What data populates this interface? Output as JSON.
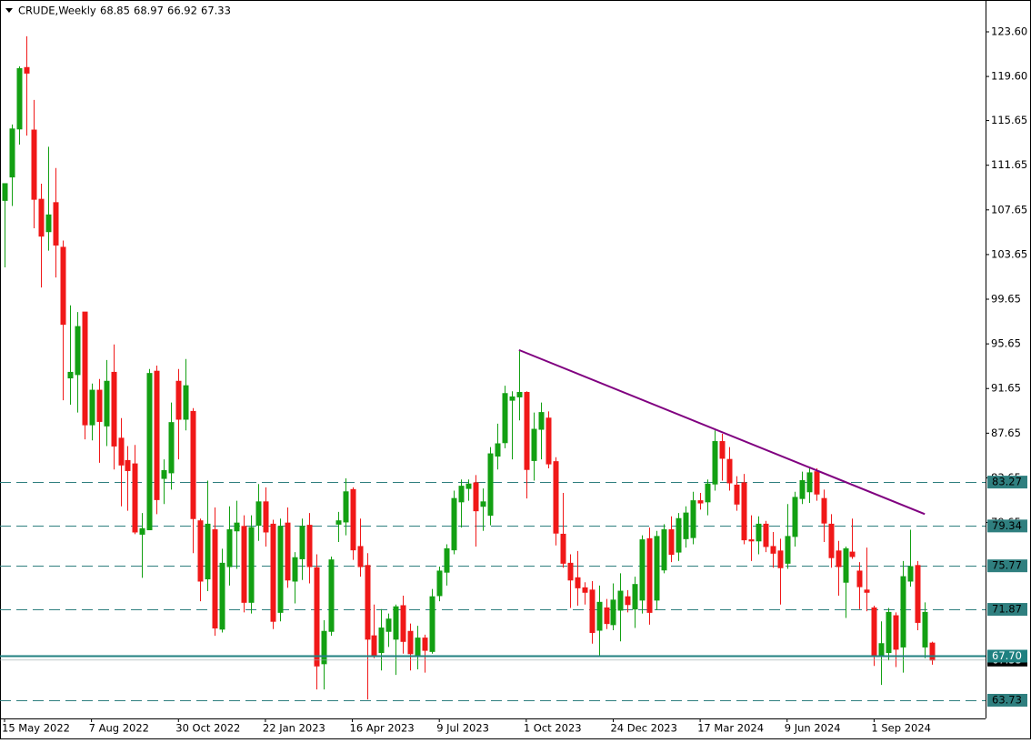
{
  "chart_data": {
    "type": "candlestick",
    "title": "CRUDE,Weekly",
    "categories": [
      "15 May 2022",
      null,
      null,
      null,
      null,
      null,
      null,
      null,
      null,
      null,
      null,
      null,
      "7 Aug 2022",
      null,
      null,
      null,
      null,
      null,
      null,
      null,
      null,
      null,
      null,
      null,
      "30 Oct 2022",
      null,
      null,
      null,
      null,
      null,
      null,
      null,
      null,
      null,
      null,
      null,
      "22 Jan 2023",
      null,
      null,
      null,
      null,
      null,
      null,
      null,
      null,
      null,
      null,
      null,
      "16 Apr 2023",
      null,
      null,
      null,
      null,
      null,
      null,
      null,
      null,
      null,
      null,
      null,
      "9 Jul 2023",
      null,
      null,
      null,
      null,
      null,
      null,
      null,
      null,
      null,
      null,
      null,
      "1 Oct 2023",
      null,
      null,
      null,
      null,
      null,
      null,
      null,
      null,
      null,
      null,
      null,
      "24 Dec 2023",
      null,
      null,
      null,
      null,
      null,
      null,
      null,
      null,
      null,
      null,
      null,
      "17 Mar 2024",
      null,
      null,
      null,
      null,
      null,
      null,
      null,
      null,
      null,
      null,
      null,
      "9 Jun 2024",
      null,
      null,
      null,
      null,
      null,
      null,
      null,
      null,
      null,
      null,
      null,
      "1 Sep 2024",
      null,
      null,
      null,
      null,
      null,
      null,
      null,
      null
    ],
    "open": [
      108.5,
      110.6,
      114.9,
      120.4,
      114.8,
      108.6,
      105.7,
      108.3,
      104.3,
      92.6,
      92.9,
      98.5,
      88.4,
      91.5,
      88.3,
      93.1,
      87.2,
      85.2,
      84.9,
      78.6,
      79.0,
      93.2,
      83.6,
      84.1,
      92.3,
      88.9,
      89.6,
      79.8,
      74.6,
      79.0,
      70.1,
      75.7,
      78.9,
      79.3,
      72.5,
      79.4,
      81.5,
      79.5,
      71.6,
      79.6,
      74.4,
      76.4,
      79.4,
      75.6,
      67.0,
      69.9,
      79.5,
      79.7,
      82.6,
      77.5,
      75.8,
      69.5,
      68.0,
      69.9,
      69.2,
      72.2,
      69.9,
      67.7,
      69.3,
      68.1,
      73.1,
      75.2,
      77.2,
      81.5,
      82.7,
      83.2,
      81.1,
      80.3,
      85.6,
      86.8,
      90.6,
      90.9,
      91.3,
      85.2,
      88.0,
      89.0,
      85.1,
      78.6,
      76.0,
      74.7,
      73.8,
      73.6,
      70.0,
      72.0,
      70.5,
      71.8,
      73.0,
      71.9,
      72.7,
      78.2,
      72.7,
      75.4,
      79.0,
      77.0,
      78.2,
      78.3,
      81.6,
      81.5,
      83.1,
      86.9,
      85.3,
      83.0,
      83.2,
      78.1,
      78.0,
      79.5,
      77.5,
      77.1,
      76.0,
      78.4,
      81.8,
      82.4,
      84.2,
      81.8,
      79.5,
      77.1,
      74.3,
      77.0,
      75.3,
      73.6,
      72.0,
      67.8,
      68.0,
      71.3,
      68.5,
      74.4,
      75.8,
      68.5,
      68.85
    ],
    "high": [
      110.0,
      115.3,
      120.5,
      123.2,
      117.5,
      110.0,
      113.3,
      111.4,
      104.9,
      99.1,
      98.5,
      98.5,
      92.1,
      92.5,
      94.2,
      95.6,
      89.0,
      86.5,
      86.6,
      80.5,
      93.4,
      93.7,
      85.3,
      90.4,
      93.4,
      94.3,
      89.9,
      80.0,
      83.4,
      81.0,
      77.3,
      81.1,
      81.6,
      80.3,
      80.3,
      83.1,
      82.8,
      79.9,
      80.0,
      81.0,
      77.0,
      80.0,
      80.5,
      76.8,
      70.9,
      76.6,
      80.6,
      83.6,
      82.8,
      80.0,
      76.9,
      72.3,
      71.9,
      71.5,
      72.3,
      73.1,
      70.6,
      70.4,
      69.6,
      73.7,
      75.7,
      77.7,
      82.5,
      83.5,
      83.5,
      83.9,
      82.7,
      86.4,
      88.5,
      91.9,
      91.4,
      95.1,
      91.4,
      89.5,
      90.4,
      89.6,
      85.5,
      82.3,
      76.8,
      77.1,
      74.3,
      74.4,
      74.0,
      72.8,
      74.2,
      75.1,
      73.6,
      74.8,
      78.5,
      79.2,
      78.9,
      79.5,
      80.2,
      80.5,
      81.1,
      82.4,
      82.3,
      83.5,
      87.9,
      87.6,
      86.4,
      83.8,
      84.0,
      80.3,
      80.2,
      79.8,
      78.8,
      78.2,
      81.3,
      82.4,
      84.2,
      84.6,
      84.5,
      82.6,
      80.4,
      78.0,
      77.5,
      80.0,
      76.1,
      77.4,
      72.2,
      70.8,
      72.0,
      71.6,
      76.2,
      79.0,
      76.2,
      72.5,
      68.97
    ],
    "low": [
      102.5,
      108.0,
      113.5,
      114.3,
      106.0,
      100.7,
      104.0,
      101.6,
      90.6,
      90.2,
      89.5,
      87.1,
      87.0,
      85.0,
      86.5,
      84.4,
      81.1,
      80.7,
      78.6,
      74.7,
      79.0,
      80.4,
      81.3,
      82.6,
      85.3,
      87.9,
      76.9,
      72.6,
      73.5,
      69.5,
      69.8,
      74.0,
      75.5,
      71.6,
      71.5,
      78.0,
      77.5,
      70.1,
      70.8,
      73.8,
      72.4,
      74.5,
      74.2,
      64.7,
      64.7,
      69.5,
      77.9,
      78.5,
      76.3,
      74.8,
      63.8,
      67.5,
      66.4,
      68.5,
      66.0,
      67.9,
      66.4,
      66.5,
      66.2,
      67.9,
      72.6,
      74.0,
      76.8,
      79.2,
      81.6,
      77.5,
      78.9,
      79.4,
      84.4,
      86.3,
      85.3,
      88.8,
      81.8,
      83.4,
      85.3,
      84.5,
      77.6,
      75.6,
      72.0,
      72.2,
      72.3,
      68.8,
      67.7,
      70.1,
      70.0,
      69.0,
      71.6,
      70.2,
      71.5,
      70.5,
      71.8,
      75.1,
      76.1,
      76.2,
      77.4,
      77.7,
      80.8,
      80.3,
      82.5,
      83.4,
      82.5,
      80.7,
      77.7,
      76.2,
      76.8,
      77.0,
      75.6,
      72.3,
      75.5,
      77.5,
      81.3,
      81.4,
      81.6,
      77.9,
      75.6,
      73.1,
      71.1,
      76.4,
      71.9,
      71.7,
      66.8,
      65.1,
      67.3,
      66.7,
      66.2,
      73.9,
      70.0,
      67.5,
      66.92
    ],
    "close": [
      110.0,
      114.9,
      120.3,
      119.9,
      108.6,
      105.3,
      107.2,
      104.5,
      97.4,
      93.1,
      97.2,
      88.4,
      91.5,
      88.7,
      92.3,
      86.5,
      84.8,
      84.3,
      78.8,
      79.1,
      93.0,
      81.7,
      84.3,
      88.6,
      88.9,
      91.9,
      80.0,
      74.4,
      79.5,
      70.2,
      76.0,
      79.0,
      79.6,
      72.5,
      79.2,
      81.5,
      78.8,
      70.8,
      79.3,
      74.5,
      76.5,
      79.3,
      75.7,
      66.8,
      69.9,
      76.3,
      79.8,
      82.4,
      77.2,
      75.7,
      69.2,
      67.8,
      70.2,
      71.0,
      72.1,
      69.0,
      67.9,
      69.3,
      68.2,
      73.0,
      75.3,
      77.3,
      81.8,
      82.9,
      83.1,
      80.7,
      81.5,
      85.8,
      86.7,
      91.2,
      90.9,
      91.3,
      84.4,
      88.0,
      89.5,
      84.9,
      78.7,
      76.0,
      74.5,
      73.8,
      73.4,
      69.8,
      72.5,
      70.6,
      72.7,
      73.5,
      72.3,
      74.1,
      78.1,
      71.6,
      78.4,
      79.0,
      76.8,
      80.0,
      80.5,
      81.6,
      81.4,
      83.1,
      86.9,
      85.4,
      83.2,
      81.3,
      78.1,
      78.0,
      79.5,
      77.5,
      76.9,
      75.6,
      78.4,
      81.9,
      83.4,
      84.1,
      82.2,
      79.6,
      76.5,
      75.7,
      77.3,
      76.6,
      73.9,
      73.4,
      67.8,
      68.8,
      71.6,
      68.3,
      74.8,
      75.7,
      70.7,
      71.6,
      67.33
    ],
    "up_color": "#13a013",
    "down_color": "#f01818",
    "ylim": [
      62.1,
      126.45
    ],
    "yticks": [
      {
        "value": 123.6,
        "label": "123.60"
      },
      {
        "value": 119.6,
        "label": "119.60"
      },
      115.65,
      111.65,
      107.65,
      103.65,
      99.65,
      95.65,
      91.65,
      87.65,
      83.65,
      79.65
    ],
    "levels": [
      83.27,
      79.34,
      75.77,
      71.87,
      63.73
    ],
    "level_color": "#2f7f7f",
    "support": {
      "value": 67.7,
      "label": "67.70"
    },
    "support_color": "#1f8080",
    "trendline": {
      "x": [
        71,
        127
      ],
      "y": [
        95.1,
        80.4
      ],
      "color": "#800080"
    }
  }
}
